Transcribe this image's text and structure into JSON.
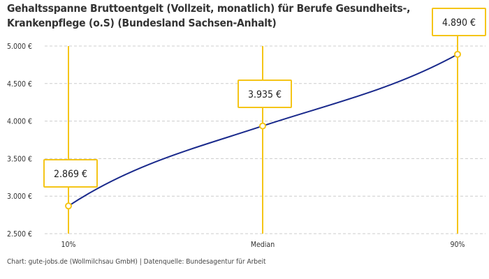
{
  "chart_data": {
    "type": "line",
    "title": "Gehaltsspanne Bruttoentgelt (Vollzeit, monatlich) für Berufe Gesundheits-, Krankenpflege (o.S) (Bundesland Sachsen-Anhalt)",
    "categories": [
      "10%",
      "Median",
      "90%"
    ],
    "values": [
      2869,
      3935,
      4890
    ],
    "data_labels": [
      "2.869 €",
      "3.935 €",
      "4.890 €"
    ],
    "y_ticks": [
      2500,
      3000,
      3500,
      4000,
      4500,
      5000
    ],
    "y_tick_labels": [
      "2.500 €",
      "3.000 €",
      "3.500 €",
      "4.000 €",
      "4.500 €",
      "5.000 €"
    ],
    "ylim": [
      2500,
      5000
    ],
    "grid": true,
    "xlabel": "",
    "ylabel": "",
    "colors": {
      "line": "#1a2a8c",
      "accent": "#f5c518",
      "grid": "#cccccc"
    }
  },
  "source": "Chart: gute-jobs.de (Wollmilchsau GmbH) | Datenquelle: Bundesagentur für Arbeit"
}
